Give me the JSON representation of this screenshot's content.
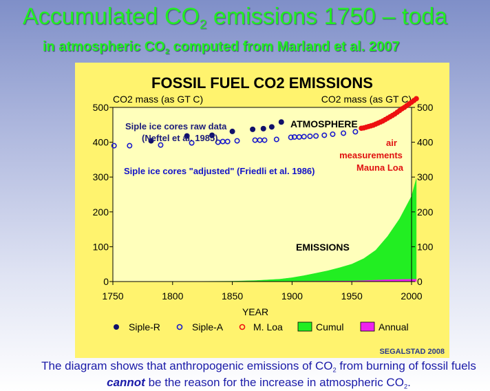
{
  "slide": {
    "title": {
      "before": "Accumulated CO",
      "sub": "2",
      "after": " emissions 1750 – toda"
    },
    "subtitle": {
      "before": "in atmospheric CO",
      "sub": "2",
      "after": " computed from Marland et al. 2007"
    },
    "caption": {
      "part1": "The diagram shows that anthropogenic emissions of CO",
      "sub1": "2",
      "part2": " from burning of fossil fuels ",
      "emph": "cannot",
      "part3": " be the reason for the increase in atmospheric CO",
      "sub2": "2",
      "part4": "."
    },
    "colors": {
      "title": "#22ee22",
      "panel": "#fff36e",
      "caption": "#1a1aa8"
    }
  },
  "chart_data": {
    "type": "scatter",
    "title": "FOSSIL FUEL CO2 EMISSIONS",
    "xlabel": "YEAR",
    "ylabel_left": "CO2 mass (as GT C)",
    "ylabel_right": "CO2 mass (as GT C)",
    "xlim": [
      1750,
      2000
    ],
    "ylim": [
      0,
      500
    ],
    "xticks": [
      1750,
      1800,
      1850,
      1900,
      1950,
      2000
    ],
    "yticks": [
      0,
      100,
      200,
      300,
      400,
      500
    ],
    "grid": false,
    "legend_position": "bottom",
    "credit": "SEGALSTAD 2008",
    "series": [
      {
        "name": "Siple-R",
        "kind": "marker-filled",
        "color": "#10106a",
        "x": [
          1782,
          1812,
          1833,
          1850,
          1867,
          1876,
          1883,
          1891
        ],
        "y": [
          404,
          418,
          420,
          431,
          437,
          439,
          444,
          458
        ]
      },
      {
        "name": "Siple-A",
        "kind": "marker-open",
        "color": "#1818cc",
        "x": [
          1751,
          1764,
          1790,
          1816,
          1838,
          1842,
          1846,
          1854,
          1869,
          1873,
          1877,
          1887,
          1899,
          1902,
          1906,
          1910,
          1915,
          1920,
          1927,
          1934,
          1943,
          1953
        ],
        "y": [
          390,
          390,
          392,
          398,
          400,
          402,
          402,
          404,
          406,
          406,
          406,
          408,
          414,
          415,
          415,
          416,
          417,
          418,
          420,
          423,
          426,
          430
        ]
      },
      {
        "name": "M. Loa",
        "kind": "marker-red",
        "color": "#ee1010",
        "x": [
          1958,
          1960,
          1962,
          1964,
          1966,
          1968,
          1970,
          1972,
          1974,
          1976,
          1978,
          1980,
          1982,
          1984,
          1986,
          1988,
          1990,
          1992,
          1994,
          1996,
          1998,
          2000,
          2002,
          2004
        ],
        "y": [
          440,
          441,
          443,
          445,
          447,
          449,
          452,
          455,
          458,
          461,
          465,
          469,
          473,
          477,
          481,
          486,
          491,
          496,
          500,
          505,
          510,
          515,
          520,
          525
        ]
      },
      {
        "name": "Cumul",
        "kind": "area",
        "color": "#22ee22",
        "x": [
          1750,
          1800,
          1850,
          1860,
          1870,
          1880,
          1890,
          1900,
          1910,
          1920,
          1930,
          1940,
          1950,
          1960,
          1970,
          1980,
          1990,
          2000,
          2004
        ],
        "y": [
          0,
          0,
          1,
          2,
          3,
          5,
          7,
          11,
          17,
          24,
          31,
          40,
          50,
          66,
          90,
          130,
          180,
          245,
          295
        ]
      },
      {
        "name": "Annual",
        "kind": "area",
        "color": "#ee22ee",
        "x": [
          1750,
          1850,
          1900,
          1950,
          1970,
          1980,
          1990,
          2000,
          2004
        ],
        "y": [
          0,
          0,
          0.5,
          1.6,
          4,
          5.3,
          6,
          6.6,
          7
        ]
      }
    ],
    "annotations": [
      {
        "text": "ATMOSPHERE",
        "style": "black-bold"
      },
      {
        "text": "Siple ice cores raw data",
        "style": "navy-bold"
      },
      {
        "text": "(Neftel et al. 1985)",
        "style": "navy-bold"
      },
      {
        "text": "Siple ice cores \"adjusted\" (Friedli et al. 1986)",
        "style": "blue-bold"
      },
      {
        "text": "air",
        "style": "red-bold"
      },
      {
        "text": "measurements",
        "style": "red-bold"
      },
      {
        "text": "Mauna Loa",
        "style": "red-bold"
      },
      {
        "text": "EMISSIONS",
        "style": "black-bold"
      }
    ]
  }
}
